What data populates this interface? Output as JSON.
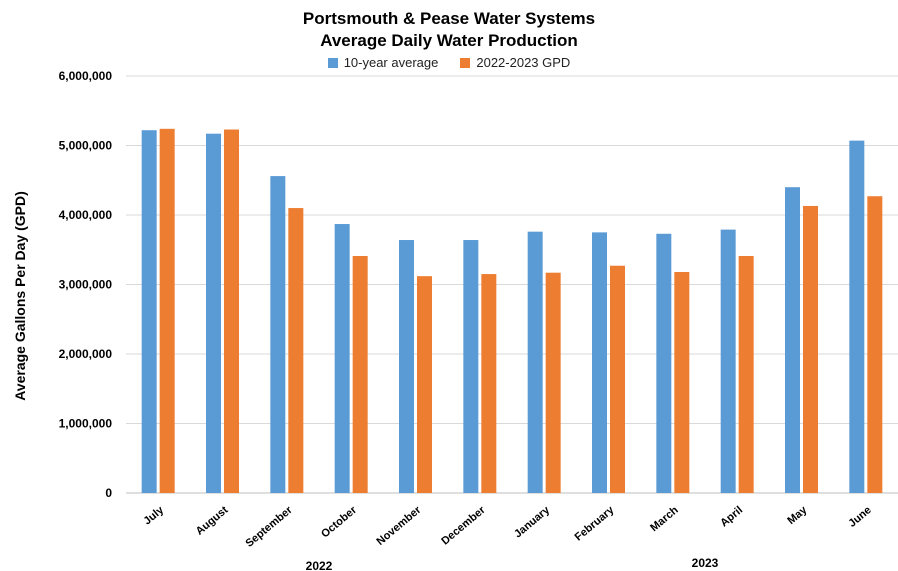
{
  "chart_data": {
    "type": "bar",
    "title": "Portsmouth & Pease Water Systems",
    "subtitle": "Average Daily Water Production",
    "ylabel": "Average Gallons Per Day (GPD)",
    "xlabel": "",
    "ylim": [
      0,
      6000000
    ],
    "yticks": [
      "0",
      "1,000,000",
      "2,000,000",
      "3,000,000",
      "4,000,000",
      "5,000,000",
      "6,000,000"
    ],
    "grid": true,
    "legend_position": "top-center",
    "categories": [
      "July",
      "August",
      "September",
      "October",
      "November",
      "December",
      "January",
      "February",
      "March",
      "April",
      "May",
      "June"
    ],
    "series": [
      {
        "name": "10-year average",
        "color": "#5b9bd5",
        "values": [
          5220000,
          5170000,
          4560000,
          3870000,
          3640000,
          3640000,
          3760000,
          3750000,
          3730000,
          3790000,
          4400000,
          5070000
        ]
      },
      {
        "name": "2022-2023 GPD",
        "color": "#ed7d31",
        "values": [
          5240000,
          5230000,
          4100000,
          3410000,
          3120000,
          3150000,
          3170000,
          3270000,
          3180000,
          3410000,
          4130000,
          4270000
        ]
      }
    ],
    "year_groups": [
      {
        "label": "2022",
        "start_index": 0,
        "end_index": 5
      },
      {
        "label": "2023",
        "start_index": 6,
        "end_index": 11
      }
    ]
  }
}
